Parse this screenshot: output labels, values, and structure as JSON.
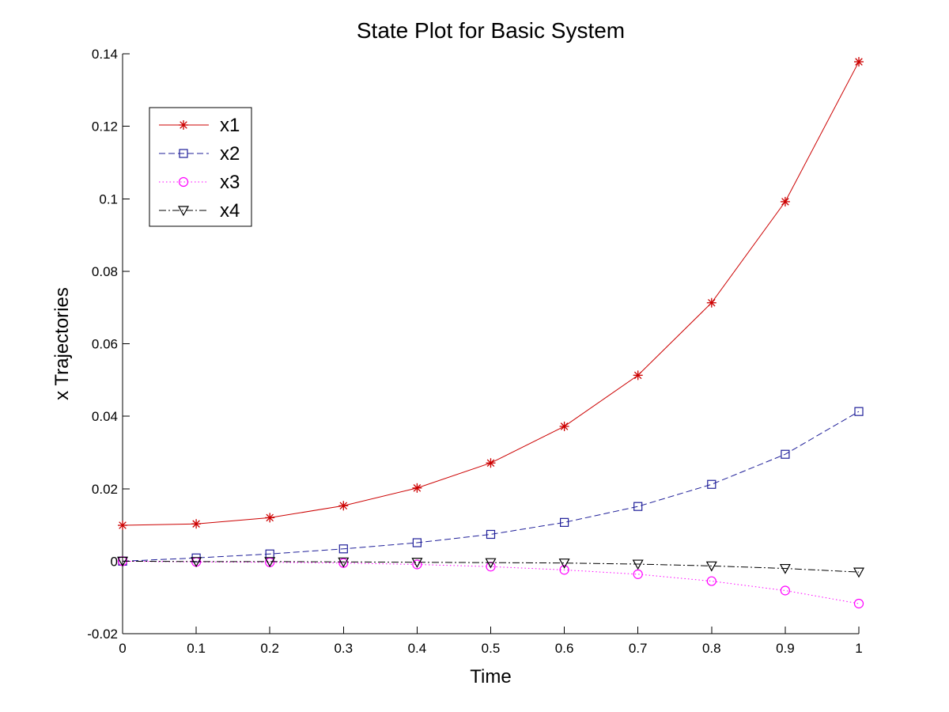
{
  "chart_data": {
    "type": "line",
    "title": "State Plot for Basic System",
    "xlabel": "Time",
    "ylabel": "x Trajectories",
    "xlim": [
      0,
      1
    ],
    "ylim": [
      -0.02,
      0.14
    ],
    "x": [
      0,
      0.1,
      0.2,
      0.3,
      0.4,
      0.5,
      0.6,
      0.7,
      0.8,
      0.9,
      1
    ],
    "x_ticks": [
      0,
      0.1,
      0.2,
      0.3,
      0.4,
      0.5,
      0.6,
      0.7,
      0.8,
      0.9,
      1
    ],
    "x_tick_labels": [
      "0",
      "0.1",
      "0.2",
      "0.3",
      "0.4",
      "0.5",
      "0.6",
      "0.7",
      "0.8",
      "0.9",
      "1"
    ],
    "y_ticks": [
      -0.02,
      0,
      0.02,
      0.04,
      0.06,
      0.08,
      0.1,
      0.12,
      0.14
    ],
    "y_tick_labels": [
      "-0.02",
      "0",
      "0.02",
      "0.04",
      "0.06",
      "0.08",
      "0.1",
      "0.12",
      "0.14"
    ],
    "grid": false,
    "legend_position": "top-left",
    "series": [
      {
        "name": "x1",
        "color": "#cc0000",
        "line_style": "solid",
        "marker": "asterisk",
        "values": [
          0.0099,
          0.0103,
          0.012,
          0.0153,
          0.0202,
          0.0271,
          0.0372,
          0.0513,
          0.0713,
          0.0992,
          0.1378
        ]
      },
      {
        "name": "x2",
        "color": "#1f1f99",
        "line_style": "dashed",
        "marker": "square",
        "values": [
          0.0,
          0.0009,
          0.002,
          0.0034,
          0.0051,
          0.0074,
          0.0107,
          0.0151,
          0.0212,
          0.0295,
          0.0413
        ]
      },
      {
        "name": "x3",
        "color": "#ff00ff",
        "line_style": "dotted",
        "marker": "circle",
        "values": [
          0.0,
          -0.0002,
          -0.0003,
          -0.0005,
          -0.0009,
          -0.0015,
          -0.0024,
          -0.0036,
          -0.0055,
          -0.0081,
          -0.0117
        ]
      },
      {
        "name": "x4",
        "color": "#000000",
        "line_style": "dashdot",
        "marker": "triangle-down",
        "values": [
          0.0,
          -0.0001,
          -0.0001,
          -0.0002,
          -0.0003,
          -0.0004,
          -0.0005,
          -0.0008,
          -0.0013,
          -0.002,
          -0.003
        ]
      }
    ]
  }
}
